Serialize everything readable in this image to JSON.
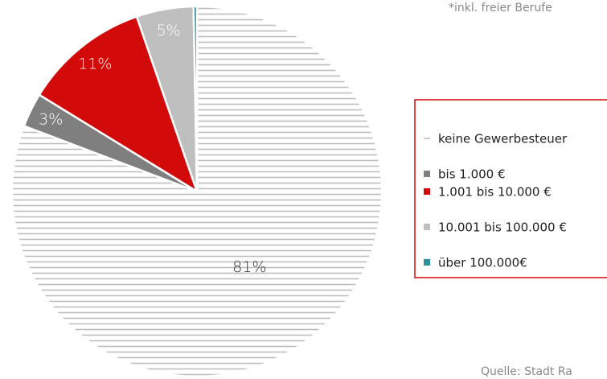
{
  "chart_data": {
    "type": "pie",
    "categories": [
      "keine Gewerbesteuer",
      "bis 1.000 €",
      "1.001 bis 10.000 €",
      "10.001 bis 100.000 €",
      "über 100.000€"
    ],
    "values": [
      81,
      3,
      11,
      5,
      0.3
    ],
    "value_labels": [
      "81%",
      "3%",
      "11%",
      "5%",
      null
    ],
    "colors": [
      "#bdbdbd",
      "#7f7f7f",
      "#d20a0a",
      "#bfbfbf",
      "#2f8f9d"
    ],
    "hatched": [
      true,
      false,
      false,
      false,
      false
    ],
    "note": "*inkl. freier Berufe",
    "source": "Quelle: Stadt Ra",
    "legend": "right"
  }
}
